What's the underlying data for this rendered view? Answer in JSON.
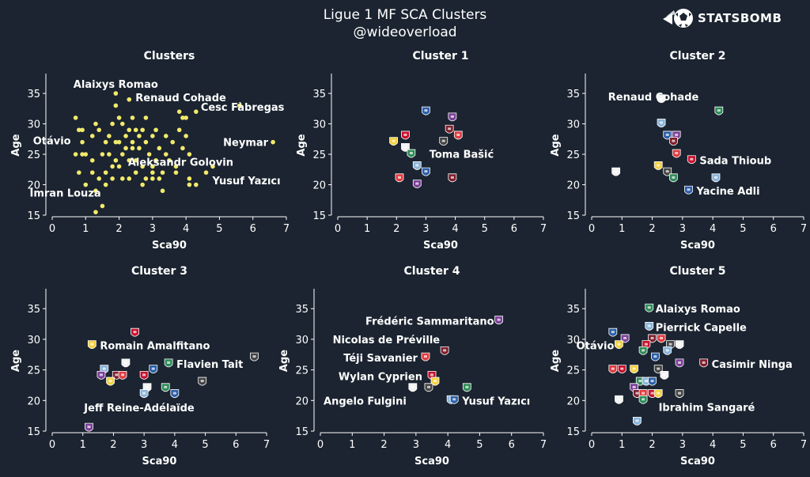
{
  "header": {
    "title": "Ligue 1 MF SCA Clusters",
    "subtitle": "@wideoverload",
    "brand": "STATSBOMB"
  },
  "colors": {
    "background": "#1b2430",
    "text": "#ffffff",
    "point": "#f2ea6b"
  },
  "chart_data": [
    {
      "type": "scatter",
      "title": "Clusters",
      "xlabel": "Sca90",
      "ylabel": "Age",
      "xlim": [
        0,
        7
      ],
      "ylim": [
        15,
        38
      ],
      "xticks": [
        0,
        1,
        2,
        3,
        4,
        5,
        6,
        7
      ],
      "yticks": [
        15,
        20,
        25,
        30,
        35
      ],
      "grid": false,
      "marker": "yellow-dot",
      "points": [
        [
          0.7,
          31
        ],
        [
          0.8,
          29
        ],
        [
          0.9,
          29
        ],
        [
          0.9,
          25
        ],
        [
          1.0,
          25
        ],
        [
          0.7,
          25
        ],
        [
          0.8,
          22
        ],
        [
          1.0,
          20
        ],
        [
          1.2,
          24
        ],
        [
          1.2,
          22
        ],
        [
          1.3,
          30
        ],
        [
          1.4,
          29
        ],
        [
          1.5,
          25
        ],
        [
          1.4,
          21
        ],
        [
          1.3,
          19
        ],
        [
          1.3,
          15.5
        ],
        [
          1.5,
          16.5
        ],
        [
          1.6,
          20
        ],
        [
          1.6,
          22
        ],
        [
          1.6,
          27
        ],
        [
          1.7,
          25
        ],
        [
          1.7,
          28
        ],
        [
          1.8,
          23
        ],
        [
          1.8,
          30
        ],
        [
          1.8,
          21
        ],
        [
          1.9,
          35
        ],
        [
          1.9,
          33
        ],
        [
          1.9,
          27
        ],
        [
          1.9,
          24
        ],
        [
          2.0,
          31
        ],
        [
          2.0,
          27
        ],
        [
          2.0,
          23
        ],
        [
          2.1,
          21
        ],
        [
          2.1,
          25
        ],
        [
          2.2,
          28
        ],
        [
          2.2,
          26
        ],
        [
          2.3,
          34
        ],
        [
          2.3,
          29
        ],
        [
          2.3,
          24
        ],
        [
          2.3,
          21
        ],
        [
          2.4,
          31
        ],
        [
          2.4,
          27
        ],
        [
          2.4,
          26
        ],
        [
          2.5,
          24
        ],
        [
          2.5,
          22
        ],
        [
          2.5,
          29
        ],
        [
          2.6,
          28
        ],
        [
          2.6,
          26
        ],
        [
          2.7,
          20
        ],
        [
          2.7,
          23
        ],
        [
          2.7,
          29
        ],
        [
          2.8,
          31
        ],
        [
          2.8,
          27
        ],
        [
          2.8,
          21
        ],
        [
          2.9,
          25
        ],
        [
          3.0,
          22
        ],
        [
          3.0,
          28
        ],
        [
          3.0,
          21
        ],
        [
          3.1,
          29
        ],
        [
          3.1,
          24
        ],
        [
          3.2,
          26
        ],
        [
          3.2,
          21
        ],
        [
          3.3,
          19
        ],
        [
          3.3,
          22
        ],
        [
          3.4,
          25
        ],
        [
          3.4,
          28
        ],
        [
          3.5,
          24
        ],
        [
          3.6,
          27
        ],
        [
          3.7,
          23
        ],
        [
          3.7,
          22
        ],
        [
          3.8,
          32
        ],
        [
          3.8,
          29
        ],
        [
          3.9,
          31
        ],
        [
          3.9,
          26
        ],
        [
          4.0,
          31
        ],
        [
          4.0,
          28
        ],
        [
          4.1,
          25
        ],
        [
          4.1,
          21
        ],
        [
          4.1,
          20
        ],
        [
          4.3,
          20
        ],
        [
          4.3,
          32
        ],
        [
          4.6,
          22
        ],
        [
          4.8,
          23
        ],
        [
          5.6,
          33
        ],
        [
          6.6,
          27
        ],
        [
          3.0,
          23
        ],
        [
          2.1,
          30
        ],
        [
          1.2,
          28
        ],
        [
          0.9,
          27
        ]
      ],
      "labels": [
        {
          "text": "Alaixys Romao",
          "x": 1.9,
          "y": 35
        },
        {
          "text": "Renaud Cohade",
          "x": 2.3,
          "y": 34
        },
        {
          "text": "Cesc Fàbregas",
          "x": 4.3,
          "y": 32
        },
        {
          "text": "Neymar",
          "x": 6.6,
          "y": 27
        },
        {
          "text": "Otávio",
          "x": 0.7,
          "y": 27
        },
        {
          "text": "Aleksandr Golovin",
          "x": 3.7,
          "y": 24
        },
        {
          "text": "Yusuf Yazıcı",
          "x": 4.6,
          "y": 21
        },
        {
          "text": "Imran Louza",
          "x": 1.6,
          "y": 20
        }
      ]
    },
    {
      "type": "scatter",
      "title": "Cluster 1",
      "xlabel": "Sca90",
      "ylabel": "Age",
      "xlim": [
        0,
        7
      ],
      "ylim": [
        15,
        38
      ],
      "xticks": [
        0,
        1,
        2,
        3,
        4,
        5,
        6,
        7
      ],
      "yticks": [
        15,
        20,
        25,
        30,
        35
      ],
      "grid": false,
      "marker": "club-crest",
      "points": [
        [
          3.0,
          32
        ],
        [
          3.9,
          31
        ],
        [
          3.8,
          29
        ],
        [
          4.1,
          28
        ],
        [
          2.3,
          28
        ],
        [
          1.9,
          27
        ],
        [
          3.6,
          27
        ],
        [
          2.3,
          26
        ],
        [
          2.5,
          25
        ],
        [
          2.7,
          23
        ],
        [
          3.0,
          22
        ],
        [
          2.7,
          20
        ],
        [
          3.9,
          21
        ],
        [
          2.1,
          21
        ]
      ],
      "labels": [
        {
          "text": "Toma Bašić",
          "x": 3.6,
          "y": 27
        }
      ]
    },
    {
      "type": "scatter",
      "title": "Cluster 2",
      "xlabel": "Sca90",
      "ylabel": "Age",
      "xlim": [
        0,
        7
      ],
      "ylim": [
        15,
        38
      ],
      "xticks": [
        0,
        1,
        2,
        3,
        4,
        5,
        6,
        7
      ],
      "yticks": [
        15,
        20,
        25,
        30,
        35
      ],
      "grid": false,
      "marker": "club-crest",
      "points": [
        [
          2.3,
          34
        ],
        [
          4.2,
          32
        ],
        [
          2.3,
          30
        ],
        [
          2.5,
          28
        ],
        [
          2.8,
          28
        ],
        [
          2.7,
          27
        ],
        [
          2.8,
          25
        ],
        [
          3.3,
          24
        ],
        [
          2.2,
          23
        ],
        [
          2.5,
          22
        ],
        [
          0.8,
          22
        ],
        [
          2.7,
          21
        ],
        [
          4.1,
          21
        ],
        [
          3.2,
          19
        ]
      ],
      "labels": [
        {
          "text": "Renaud Cohade",
          "x": 2.3,
          "y": 34
        },
        {
          "text": "Sada Thioub",
          "x": 3.3,
          "y": 24
        },
        {
          "text": "Yacine Adli",
          "x": 3.2,
          "y": 19
        }
      ]
    },
    {
      "type": "scatter",
      "title": "Cluster 3",
      "xlabel": "Sca90",
      "ylabel": "Age",
      "xlim": [
        0,
        7
      ],
      "ylim": [
        15,
        38
      ],
      "xticks": [
        0,
        1,
        2,
        3,
        4,
        5,
        6,
        7
      ],
      "yticks": [
        15,
        20,
        25,
        30,
        35
      ],
      "grid": false,
      "marker": "club-crest",
      "points": [
        [
          2.7,
          31
        ],
        [
          1.3,
          29
        ],
        [
          6.6,
          27
        ],
        [
          2.4,
          26
        ],
        [
          3.8,
          26
        ],
        [
          1.7,
          25
        ],
        [
          3.3,
          25
        ],
        [
          1.6,
          24
        ],
        [
          2.1,
          24
        ],
        [
          2.3,
          24
        ],
        [
          3.0,
          24
        ],
        [
          1.9,
          23
        ],
        [
          4.9,
          23
        ],
        [
          3.1,
          22
        ],
        [
          3.7,
          22
        ],
        [
          3.0,
          21
        ],
        [
          4.0,
          21
        ],
        [
          1.2,
          15.5
        ]
      ],
      "labels": [
        {
          "text": "Romain Amalfitano",
          "x": 1.3,
          "y": 29
        },
        {
          "text": "Flavien Tait",
          "x": 3.8,
          "y": 26
        },
        {
          "text": "Jeff Reine-Adélaïde",
          "x": 3.1,
          "y": 19
        }
      ]
    },
    {
      "type": "scatter",
      "title": "Cluster 4",
      "xlabel": "Sca90",
      "ylabel": "Age",
      "xlim": [
        0,
        7
      ],
      "ylim": [
        15,
        38
      ],
      "xticks": [
        0,
        1,
        2,
        3,
        4,
        5,
        6,
        7
      ],
      "yticks": [
        15,
        20,
        25,
        30,
        35
      ],
      "grid": false,
      "marker": "club-crest",
      "points": [
        [
          5.6,
          33
        ],
        [
          3.9,
          28
        ],
        [
          3.3,
          27
        ],
        [
          3.5,
          24
        ],
        [
          3.6,
          23
        ],
        [
          3.4,
          22
        ],
        [
          2.9,
          22
        ],
        [
          4.6,
          22
        ],
        [
          4.1,
          20
        ],
        [
          4.2,
          20
        ]
      ],
      "labels": [
        {
          "text": "Frédéric Sammaritano",
          "x": 5.6,
          "y": 33
        },
        {
          "text": "Nicolas de Préville",
          "x": 3.9,
          "y": 30
        },
        {
          "text": "Téji Savanier",
          "x": 3.3,
          "y": 27
        },
        {
          "text": "Wylan Cyprien",
          "x": 3.4,
          "y": 24
        },
        {
          "text": "Angelo Fulgini",
          "x": 2.9,
          "y": 20
        },
        {
          "text": "Yusuf Yazıcı",
          "x": 4.2,
          "y": 20
        }
      ]
    },
    {
      "type": "scatter",
      "title": "Cluster 5",
      "xlabel": "Sca90",
      "ylabel": "Age",
      "xlim": [
        0,
        7
      ],
      "ylim": [
        15,
        38
      ],
      "xticks": [
        0,
        1,
        2,
        3,
        4,
        5,
        6,
        7
      ],
      "yticks": [
        15,
        20,
        25,
        30,
        35
      ],
      "grid": false,
      "marker": "club-crest",
      "points": [
        [
          1.9,
          35
        ],
        [
          1.9,
          32
        ],
        [
          0.7,
          31
        ],
        [
          1.1,
          30
        ],
        [
          2.0,
          30
        ],
        [
          2.3,
          30
        ],
        [
          1.8,
          29
        ],
        [
          0.9,
          29
        ],
        [
          2.6,
          29
        ],
        [
          2.9,
          29
        ],
        [
          1.7,
          28
        ],
        [
          2.5,
          28
        ],
        [
          2.1,
          27
        ],
        [
          2.9,
          26
        ],
        [
          3.7,
          26
        ],
        [
          0.7,
          25
        ],
        [
          1.0,
          25
        ],
        [
          1.4,
          25
        ],
        [
          2.2,
          25
        ],
        [
          2.4,
          24
        ],
        [
          1.6,
          23
        ],
        [
          1.8,
          23
        ],
        [
          2.0,
          23
        ],
        [
          1.4,
          22
        ],
        [
          1.5,
          21
        ],
        [
          1.7,
          21
        ],
        [
          2.0,
          21
        ],
        [
          2.2,
          21
        ],
        [
          2.9,
          21
        ],
        [
          0.9,
          20
        ],
        [
          1.7,
          20
        ],
        [
          1.5,
          16.5
        ]
      ],
      "labels": [
        {
          "text": "Alaixys Romao",
          "x": 1.9,
          "y": 35
        },
        {
          "text": "Pierrick Capelle",
          "x": 1.9,
          "y": 32
        },
        {
          "text": "Otávio",
          "x": 0.9,
          "y": 29
        },
        {
          "text": "Casimir Ninga",
          "x": 3.7,
          "y": 26
        },
        {
          "text": "Ibrahim Sangaré",
          "x": 2.0,
          "y": 20
        }
      ]
    }
  ]
}
